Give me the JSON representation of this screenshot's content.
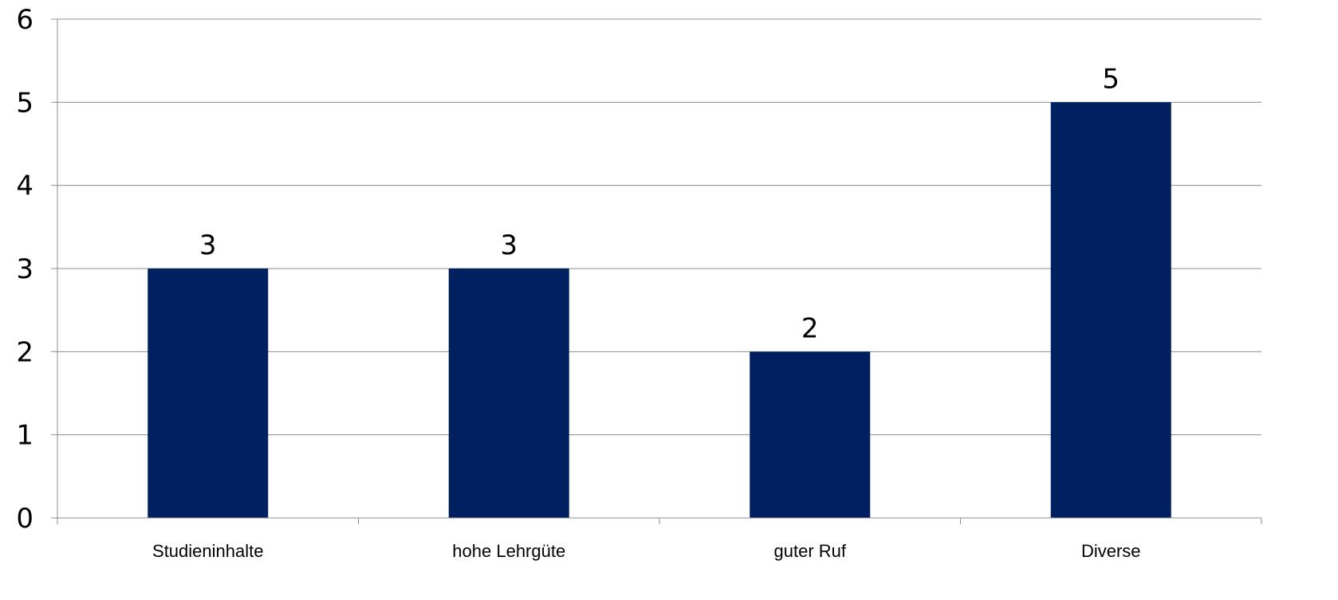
{
  "chart_data": {
    "type": "bar",
    "title": "",
    "xlabel": "",
    "ylabel": "",
    "categories": [
      "Studieninhalte",
      "hohe Lehrgüte",
      "guter Ruf",
      "Diverse"
    ],
    "values": [
      3,
      3,
      2,
      5
    ],
    "data_labels": [
      "3",
      "3",
      "2",
      "5"
    ],
    "ylim": [
      0,
      6
    ],
    "yticks": [
      "0",
      "1",
      "2",
      "3",
      "4",
      "5",
      "6"
    ],
    "grid": true,
    "legend": "none",
    "bar_color": "#002060"
  }
}
